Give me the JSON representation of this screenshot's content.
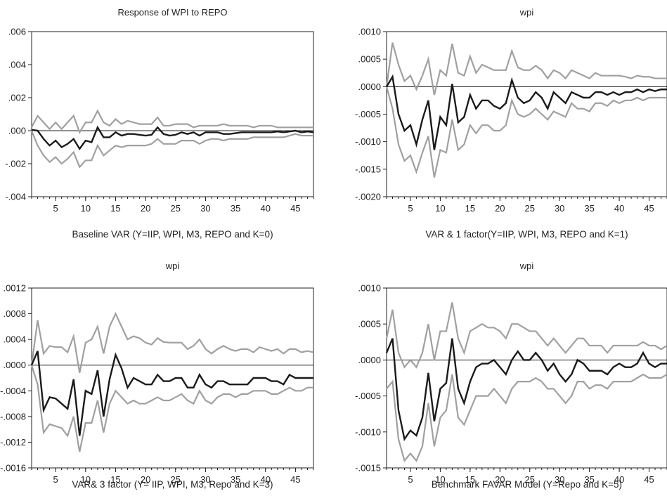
{
  "colors": {
    "response": "#1a1a1a",
    "bands": "#a0a0a0",
    "axis": "#231f20"
  },
  "chart_data": [
    {
      "type": "line",
      "title": "Response of WPI to REPO",
      "caption": "Baseline VAR (Y=IIP, WPI, M3, REPO and K=0)",
      "xlim": [
        1,
        48
      ],
      "ylim": [
        -0.004,
        0.006
      ],
      "xticks": [
        5,
        10,
        15,
        20,
        25,
        30,
        35,
        40,
        45
      ],
      "yticks": [
        -0.004,
        -0.002,
        0.0,
        0.002,
        0.004,
        0.006
      ],
      "ytick_labels": [
        "-.004",
        "-.002",
        ".000",
        ".002",
        ".004",
        ".006"
      ],
      "x": [
        1,
        2,
        3,
        4,
        5,
        6,
        7,
        8,
        9,
        10,
        11,
        12,
        13,
        14,
        15,
        16,
        17,
        18,
        19,
        20,
        21,
        22,
        23,
        24,
        25,
        26,
        27,
        28,
        29,
        30,
        31,
        32,
        33,
        34,
        35,
        36,
        37,
        38,
        39,
        40,
        41,
        42,
        43,
        44,
        45,
        46,
        47,
        48
      ],
      "series": [
        {
          "role": "response",
          "values": [
            5e-05,
            0.0,
            -0.0005,
            -0.0009,
            -0.0006,
            -0.001,
            -0.0008,
            -0.0005,
            -0.0011,
            -0.0006,
            -0.0007,
            0.0002,
            -0.0004,
            -0.0004,
            -0.0001,
            -0.0003,
            -0.0002,
            -0.0002,
            -0.00025,
            -0.0003,
            -0.00025,
            0.0002,
            -0.0002,
            -0.0003,
            -0.00025,
            -0.0001,
            -0.0002,
            -0.0001,
            -0.0003,
            -0.0001,
            -0.0001,
            -0.0001,
            -0.0002,
            -0.0002,
            -0.00015,
            -0.0001,
            -0.0001,
            -0.0001,
            -0.0001,
            -0.0001,
            -0.0001,
            -5e-05,
            -0.0001,
            -5e-05,
            0.0,
            -0.0001,
            -5e-05,
            -0.0001
          ]
        },
        {
          "role": "upper",
          "values": [
            0.0002,
            0.0009,
            0.0005,
            0.0001,
            0.0005,
            0.0001,
            0.0005,
            0.0009,
            -0.0001,
            0.0005,
            0.0005,
            0.0012,
            0.0005,
            0.0003,
            0.0007,
            0.0004,
            0.0006,
            0.0005,
            0.0004,
            0.0004,
            0.0004,
            0.0008,
            0.0003,
            0.0003,
            0.0004,
            0.0004,
            0.0004,
            0.0002,
            0.0003,
            0.0003,
            0.0003,
            0.0003,
            0.0004,
            0.0003,
            0.0003,
            0.0003,
            0.0003,
            0.0002,
            0.0003,
            0.0003,
            0.0003,
            0.0002,
            0.0002,
            0.0002,
            0.0002,
            0.0002,
            0.0002,
            0.0002
          ]
        },
        {
          "role": "lower",
          "values": [
            0.0,
            -0.0009,
            -0.0015,
            -0.0019,
            -0.0016,
            -0.002,
            -0.0017,
            -0.0013,
            -0.0022,
            -0.0018,
            -0.0018,
            -0.0009,
            -0.0015,
            -0.0012,
            -0.0009,
            -0.001,
            -0.0009,
            -0.0009,
            -0.0009,
            -0.0009,
            -0.0008,
            -0.0005,
            -0.0008,
            -0.0008,
            -0.0008,
            -0.0006,
            -0.0006,
            -0.0006,
            -0.0008,
            -0.0006,
            -0.0005,
            -0.0005,
            -0.0006,
            -0.0005,
            -0.0005,
            -0.0005,
            -0.0005,
            -0.0004,
            -0.0004,
            -0.0004,
            -0.0004,
            -0.0004,
            -0.0004,
            -0.0003,
            -0.0002,
            -0.0003,
            -0.0003,
            -0.0003
          ]
        }
      ]
    },
    {
      "type": "line",
      "title": "wpi",
      "caption": "VAR & 1 factor(Y=IIP, WPI, M3, REPO and K=1)",
      "xlim": [
        1,
        48
      ],
      "ylim": [
        -0.002,
        0.001
      ],
      "xticks": [
        5,
        10,
        15,
        20,
        25,
        30,
        35,
        40,
        45
      ],
      "yticks": [
        -0.002,
        -0.0015,
        -0.001,
        -0.0005,
        0.0,
        0.0005,
        0.001
      ],
      "ytick_labels": [
        "-.0020",
        "-.0015",
        "-.0010",
        "-.0005",
        ".0000",
        ".0005",
        ".0010"
      ],
      "x": [
        1,
        2,
        3,
        4,
        5,
        6,
        7,
        8,
        9,
        10,
        11,
        12,
        13,
        14,
        15,
        16,
        17,
        18,
        19,
        20,
        21,
        22,
        23,
        24,
        25,
        26,
        27,
        28,
        29,
        30,
        31,
        32,
        33,
        34,
        35,
        36,
        37,
        38,
        39,
        40,
        41,
        42,
        43,
        44,
        45,
        46,
        47,
        48
      ],
      "series": [
        {
          "role": "response",
          "values": [
            0.0,
            0.00018,
            -0.0005,
            -0.0008,
            -0.0007,
            -0.00105,
            -0.0006,
            -0.00025,
            -0.00115,
            -0.00055,
            -0.0007,
            5e-05,
            -0.00065,
            -0.00055,
            -0.00015,
            -0.0004,
            -0.00025,
            -0.00025,
            -0.00035,
            -0.0004,
            -0.0003,
            0.00012,
            -0.0002,
            -0.0003,
            -0.00025,
            -0.0001,
            -0.0002,
            -0.0004,
            -0.0001,
            -0.0002,
            -0.0003,
            -0.0001,
            -0.00015,
            -0.0002,
            -0.0002,
            -0.0001,
            -0.0001,
            -0.00015,
            -0.0001,
            -0.00015,
            -0.0001,
            -0.0001,
            -5e-05,
            -0.0001,
            -5e-05,
            -8e-05,
            -5e-05,
            -5e-05
          ]
        },
        {
          "role": "upper",
          "values": [
            0.0,
            0.0008,
            0.0004,
            0.0001,
            0.0002,
            -5e-05,
            0.0002,
            0.0005,
            -0.00015,
            0.0003,
            0.0002,
            0.00078,
            0.00025,
            0.0002,
            0.00055,
            0.00025,
            0.0004,
            0.00035,
            0.0003,
            0.0003,
            0.0003,
            0.00065,
            0.00035,
            0.0003,
            0.0003,
            0.00038,
            0.0003,
            0.00015,
            0.0003,
            0.00025,
            0.00015,
            0.0003,
            0.00025,
            0.0002,
            0.00015,
            0.00025,
            0.0002,
            0.0002,
            0.0002,
            0.0002,
            0.00018,
            0.00015,
            0.0002,
            0.00018,
            0.00018,
            0.00015,
            0.00015,
            0.00015
          ]
        },
        {
          "role": "lower",
          "values": [
            0.0,
            -0.0004,
            -0.00105,
            -0.00135,
            -0.00125,
            -0.00155,
            -0.0012,
            -0.0009,
            -0.00165,
            -0.00115,
            -0.0012,
            -0.0006,
            -0.00115,
            -0.00105,
            -0.0007,
            -0.00085,
            -0.0007,
            -0.0007,
            -0.0008,
            -0.0008,
            -0.0007,
            -0.00025,
            -0.0005,
            -0.00055,
            -0.0005,
            -0.0004,
            -0.0005,
            -0.0006,
            -0.00045,
            -0.0005,
            -0.00055,
            -0.0003,
            -0.0004,
            -0.0004,
            -0.00045,
            -0.0003,
            -0.0003,
            -0.00035,
            -0.00025,
            -0.0003,
            -0.00025,
            -0.00025,
            -0.0002,
            -0.00025,
            -0.0002,
            -0.0002,
            -0.0002,
            -0.0002
          ]
        }
      ]
    },
    {
      "type": "line",
      "title": "wpi",
      "caption": "VAR& 3 factor (Y= IIP, WPI, M3, Repo and K=3)",
      "xlim": [
        1,
        48
      ],
      "ylim": [
        -0.0016,
        0.0012
      ],
      "xticks": [
        5,
        10,
        15,
        20,
        25,
        30,
        35,
        40,
        45
      ],
      "yticks": [
        -0.0016,
        -0.0012,
        -0.0008,
        -0.0004,
        0.0,
        0.0004,
        0.0008,
        0.0012
      ],
      "ytick_labels": [
        "-.0016",
        "-.0012",
        "-.0008",
        "-.0004",
        ".0000",
        ".0004",
        ".0008",
        ".0012"
      ],
      "x": [
        1,
        2,
        3,
        4,
        5,
        6,
        7,
        8,
        9,
        10,
        11,
        12,
        13,
        14,
        15,
        16,
        17,
        18,
        19,
        20,
        21,
        22,
        23,
        24,
        25,
        26,
        27,
        28,
        29,
        30,
        31,
        32,
        33,
        34,
        35,
        36,
        37,
        38,
        39,
        40,
        41,
        42,
        43,
        44,
        45,
        46,
        47,
        48
      ],
      "series": [
        {
          "role": "response",
          "values": [
            0.0,
            0.00022,
            -0.0007,
            -0.0005,
            -0.00052,
            -0.0006,
            -0.00068,
            -0.00022,
            -0.0011,
            -0.0004,
            -0.00045,
            -8e-05,
            -0.0008,
            -0.00022,
            0.00016,
            -5e-05,
            -0.00035,
            -0.0002,
            -0.00025,
            -0.0003,
            -0.0003,
            -0.00015,
            -0.00025,
            -0.00025,
            -0.0002,
            -0.0002,
            -0.00035,
            -0.00035,
            -0.00015,
            -0.0003,
            -0.00035,
            -0.00025,
            -0.00025,
            -0.0003,
            -0.0003,
            -0.0003,
            -0.0003,
            -0.0002,
            -0.0002,
            -0.0002,
            -0.00025,
            -0.00025,
            -0.0003,
            -0.00015,
            -0.0002,
            -0.0002,
            -0.0002,
            -0.0002
          ]
        },
        {
          "role": "upper",
          "values": [
            0.0,
            0.0007,
            0.00018,
            0.0003,
            0.00028,
            0.00028,
            0.0002,
            0.00045,
            -0.00012,
            0.00035,
            0.0004,
            0.0006,
            0.00018,
            0.0006,
            0.0008,
            0.0006,
            0.0004,
            0.00045,
            0.00042,
            0.00035,
            0.00032,
            0.00042,
            0.00036,
            0.00035,
            0.00035,
            0.00035,
            0.00025,
            0.0003,
            0.0004,
            0.00025,
            0.00018,
            0.00025,
            0.0003,
            0.00025,
            0.00022,
            0.00025,
            0.00025,
            0.0002,
            0.00028,
            0.00025,
            0.00022,
            0.00025,
            0.00018,
            0.00025,
            0.00025,
            0.0002,
            0.00022,
            0.0002
          ]
        },
        {
          "role": "lower",
          "values": [
            0.0,
            -0.0003,
            -0.00105,
            -0.00092,
            -0.00095,
            -0.00098,
            -0.0011,
            -0.0008,
            -0.00135,
            -0.0009,
            -0.0009,
            -0.00055,
            -0.00105,
            -0.0006,
            -0.0004,
            -0.0005,
            -0.0006,
            -0.00055,
            -0.0006,
            -0.0006,
            -0.00055,
            -0.0005,
            -0.00055,
            -0.00055,
            -0.0005,
            -0.00045,
            -0.00055,
            -0.0006,
            -0.0004,
            -0.00055,
            -0.0006,
            -0.0005,
            -0.00045,
            -0.00045,
            -0.0005,
            -0.00045,
            -0.00045,
            -0.0004,
            -0.0004,
            -0.0004,
            -0.00045,
            -0.00045,
            -0.0004,
            -0.00035,
            -0.0004,
            -0.0004,
            -0.00035,
            -0.00035
          ]
        }
      ]
    },
    {
      "type": "line",
      "title": "wpi",
      "caption": "Benchmark FAVAR Model (Y=Repo and K=5)",
      "xlim": [
        1,
        48
      ],
      "ylim": [
        -0.0015,
        0.001
      ],
      "xticks": [
        5,
        10,
        15,
        20,
        25,
        30,
        35,
        40,
        45
      ],
      "yticks": [
        -0.0015,
        -0.001,
        -0.0005,
        0.0,
        0.0005,
        0.001
      ],
      "ytick_labels": [
        "-.0015",
        "-.0010",
        "-.0005",
        ".0000",
        ".0005",
        ".0010"
      ],
      "x": [
        1,
        2,
        3,
        4,
        5,
        6,
        7,
        8,
        9,
        10,
        11,
        12,
        13,
        14,
        15,
        16,
        17,
        18,
        19,
        20,
        21,
        22,
        23,
        24,
        25,
        26,
        27,
        28,
        29,
        30,
        31,
        32,
        33,
        34,
        35,
        36,
        37,
        38,
        39,
        40,
        41,
        42,
        43,
        44,
        45,
        46,
        47,
        48
      ],
      "series": [
        {
          "role": "response",
          "values": [
            0.0001,
            0.0003,
            -0.0007,
            -0.0011,
            -0.00098,
            -0.00105,
            -0.0008,
            -0.00018,
            -0.00085,
            -0.0004,
            -0.00032,
            0.0003,
            -0.0004,
            -0.0006,
            -0.0003,
            -0.0001,
            -5e-05,
            -5e-05,
            0.0,
            -0.0001,
            -0.0002,
            0.0,
            0.00012,
            0.0,
            0.0,
            0.0001,
            0.0,
            -0.00015,
            -5e-05,
            -0.0002,
            -0.0003,
            -0.0002,
            0.0,
            -5e-05,
            -0.00015,
            -0.00015,
            -0.00015,
            -0.0002,
            -0.0001,
            -5e-05,
            -0.0001,
            -0.0001,
            -5e-05,
            0.0001,
            -5e-05,
            -0.0001,
            -5e-05,
            -5e-05
          ]
        },
        {
          "role": "upper",
          "values": [
            0.0003,
            0.0007,
            0.0001,
            -0.0001,
            0.0,
            -0.0001,
            0.0001,
            0.0005,
            0.0,
            0.0004,
            0.0004,
            0.0008,
            0.0003,
            0.0001,
            0.0004,
            0.00045,
            0.0005,
            0.00045,
            0.00045,
            0.0004,
            0.0003,
            0.0005,
            0.0005,
            0.00045,
            0.0004,
            0.0004,
            0.0003,
            0.0002,
            0.0003,
            0.0002,
            0.0001,
            0.0002,
            0.0003,
            0.0003,
            0.0002,
            0.0002,
            0.0002,
            0.0001,
            0.0002,
            0.0002,
            0.0002,
            0.0002,
            0.0002,
            0.00025,
            0.0002,
            0.0002,
            0.00015,
            0.0002
          ]
        },
        {
          "role": "lower",
          "values": [
            -0.0004,
            -0.0003,
            -0.0011,
            -0.0014,
            -0.0013,
            -0.0014,
            -0.0012,
            -0.0006,
            -0.0012,
            -0.0008,
            -0.0007,
            -0.0002,
            -0.0008,
            -0.0009,
            -0.0007,
            -0.0005,
            -0.0005,
            -0.0005,
            -0.0004,
            -0.0005,
            -0.0006,
            -0.0004,
            -0.0003,
            -0.0003,
            -0.0003,
            -0.00025,
            -0.0003,
            -0.0004,
            -0.0004,
            -0.0005,
            -0.0006,
            -0.0005,
            -0.0003,
            -0.0003,
            -0.0004,
            -0.00035,
            -0.00035,
            -0.0004,
            -0.0003,
            -0.0003,
            -0.0003,
            -0.0003,
            -0.00025,
            -0.0002,
            -0.00025,
            -0.00025,
            -0.00025,
            -0.0002
          ]
        }
      ]
    }
  ]
}
